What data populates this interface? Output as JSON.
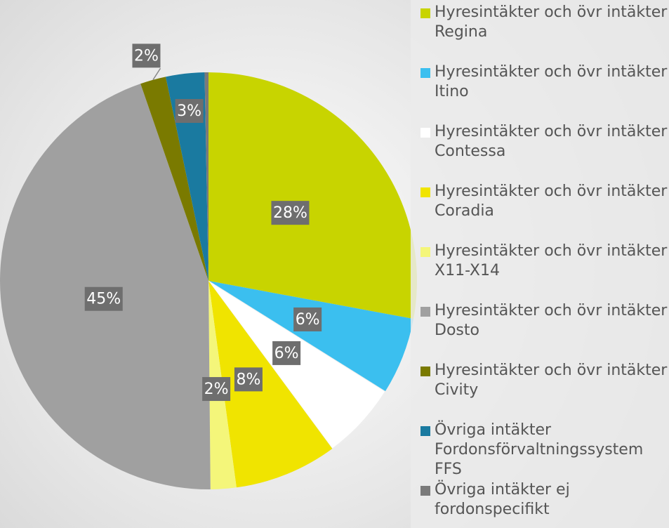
{
  "chart_data": {
    "type": "pie",
    "categories": [
      "Hyresintäkter och övr intäkter Regina",
      "Hyresintäkter och övr intäkter Itino",
      "Hyresintäkter och övr intäkter Contessa",
      "Hyresintäkter och övr intäkter Coradia",
      "Hyresintäkter och övr intäkter X11-X14",
      "Hyresintäkter och övr intäkter Dosto",
      "Hyresintäkter och övr intäkter Civity",
      "Övriga intäkter Fordonsförvaltningssystem FFS",
      "Övriga intäkter ej fordonspecifikt"
    ],
    "values": [
      28,
      6,
      6,
      8,
      2,
      45,
      2,
      3,
      0.3
    ],
    "value_labels": [
      "28%",
      "6%",
      "6%",
      "8%",
      "2%",
      "45%",
      "2%",
      "3%",
      null
    ],
    "colors": [
      "#c8d400",
      "#3bbfef",
      "#ffffff",
      "#f0e400",
      "#f4f67a",
      "#a0a0a0",
      "#7a7a00",
      "#1a7aa0",
      "#7a7a7a"
    ],
    "legend": "right"
  }
}
